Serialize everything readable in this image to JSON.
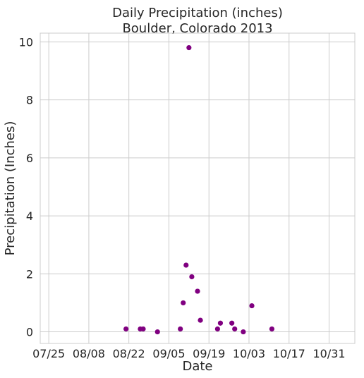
{
  "chart_data": {
    "type": "scatter",
    "title": "Daily Precipitation (inches)",
    "subtitle": "Boulder, Colorado 2013",
    "xlabel": "Date",
    "ylabel": "Precipitation (Inches)",
    "x_axis_type": "date",
    "xlim": [
      "2013-07-22",
      "2013-11-09"
    ],
    "ylim": [
      -0.4,
      10.3
    ],
    "x_ticks": [
      {
        "date": "2013-07-25",
        "label": "07/25"
      },
      {
        "date": "2013-08-08",
        "label": "08/08"
      },
      {
        "date": "2013-08-22",
        "label": "08/22"
      },
      {
        "date": "2013-09-05",
        "label": "09/05"
      },
      {
        "date": "2013-09-19",
        "label": "09/19"
      },
      {
        "date": "2013-10-03",
        "label": "10/03"
      },
      {
        "date": "2013-10-17",
        "label": "10/17"
      },
      {
        "date": "2013-10-31",
        "label": "10/31"
      }
    ],
    "y_ticks": [
      0,
      2,
      4,
      6,
      8,
      10
    ],
    "grid": true,
    "marker_color": "#800080",
    "grid_color": "#cccccc",
    "points": [
      {
        "x": "2013-08-21",
        "y": 0.1
      },
      {
        "x": "2013-08-26",
        "y": 0.1
      },
      {
        "x": "2013-08-27",
        "y": 0.1
      },
      {
        "x": "2013-09-01",
        "y": 0.0
      },
      {
        "x": "2013-09-09",
        "y": 0.1
      },
      {
        "x": "2013-09-10",
        "y": 1.0
      },
      {
        "x": "2013-09-11",
        "y": 2.3
      },
      {
        "x": "2013-09-12",
        "y": 9.8
      },
      {
        "x": "2013-09-13",
        "y": 1.9
      },
      {
        "x": "2013-09-15",
        "y": 1.4
      },
      {
        "x": "2013-09-16",
        "y": 0.4
      },
      {
        "x": "2013-09-22",
        "y": 0.1
      },
      {
        "x": "2013-09-23",
        "y": 0.3
      },
      {
        "x": "2013-09-27",
        "y": 0.3
      },
      {
        "x": "2013-09-28",
        "y": 0.1
      },
      {
        "x": "2013-10-01",
        "y": 0.0
      },
      {
        "x": "2013-10-04",
        "y": 0.9
      },
      {
        "x": "2013-10-11",
        "y": 0.1
      }
    ]
  }
}
